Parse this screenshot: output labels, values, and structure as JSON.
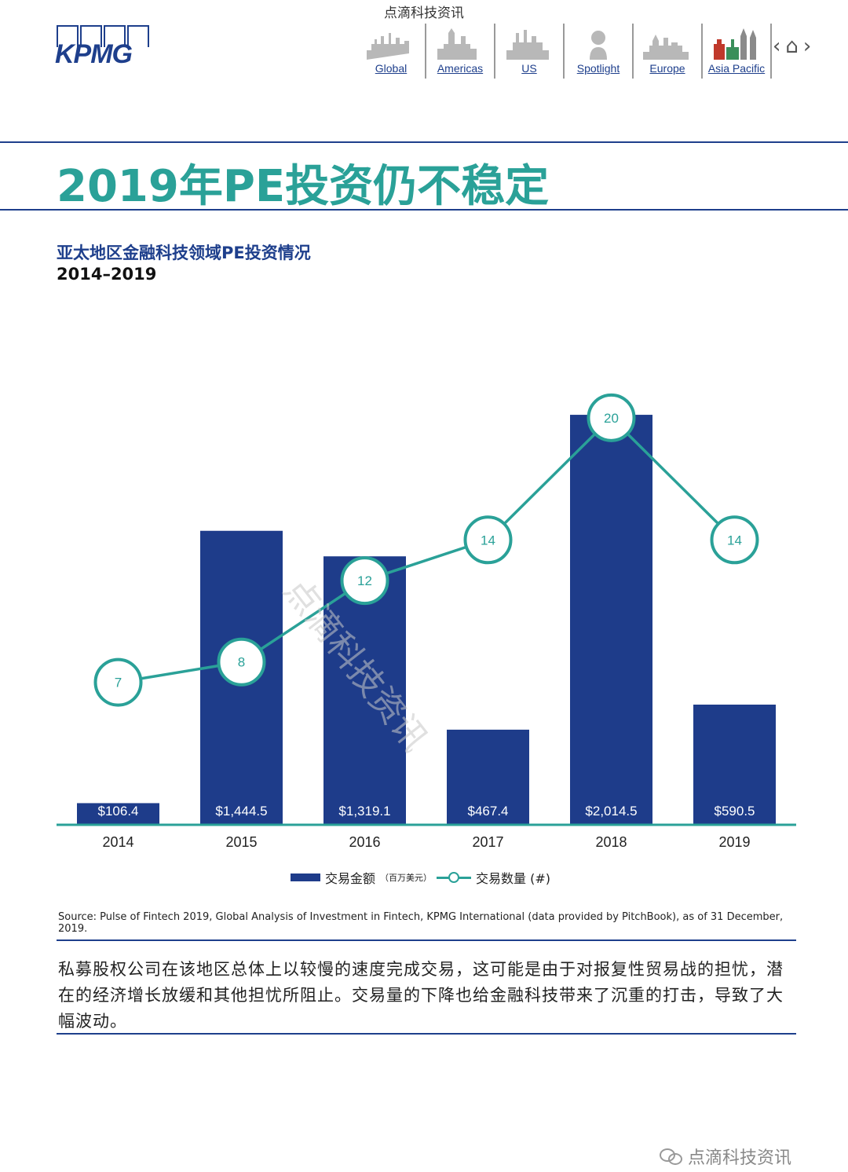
{
  "watermark_top": "点滴科技资讯",
  "brand": {
    "logo_text": "KPMG"
  },
  "nav": {
    "items": [
      {
        "label": "Global",
        "icon": "global-skyline-icon"
      },
      {
        "label": "Americas",
        "icon": "americas-skyline-icon"
      },
      {
        "label": "US",
        "icon": "us-skyline-icon"
      },
      {
        "label": "Spotlight",
        "icon": "spotlight-bust-icon"
      },
      {
        "label": "Europe",
        "icon": "europe-skyline-icon"
      },
      {
        "label": "Asia Pacific",
        "icon": "asia-pacific-skyline-icon"
      }
    ],
    "prev_symbol": "‹",
    "home_symbol": "⌂",
    "next_symbol": "›"
  },
  "page_title": "2019年PE投资仍不稳定",
  "chart_title": "亚太地区金融科技领域PE投资情况",
  "chart_subtitle": "2014–2019",
  "chart_data": {
    "type": "bar+line",
    "title": "亚太地区金融科技领域PE投资情况",
    "subtitle": "2014–2019",
    "categories": [
      "2014",
      "2015",
      "2016",
      "2017",
      "2018",
      "2019"
    ],
    "series": [
      {
        "name": "交易金额（百万美元）",
        "type": "bar",
        "color": "#1e3c8a",
        "values": [
          106.4,
          1444.5,
          1319.1,
          467.4,
          2014.5,
          590.5
        ],
        "labels": [
          "$106.4",
          "$1,444.5",
          "$1,319.1",
          "$467.4",
          "$2,014.5",
          "$590.5"
        ]
      },
      {
        "name": "交易数量 (#)",
        "type": "line",
        "color": "#2aa198",
        "values": [
          7,
          8,
          12,
          14,
          20,
          14
        ]
      }
    ],
    "ylim_bar": [
      0,
      2200
    ],
    "ylim_line": [
      0,
      22
    ],
    "grid": false,
    "legend_position": "bottom-center"
  },
  "legend": {
    "bar_label": "交易金额",
    "bar_unit": "（百万美元）",
    "line_label": "交易数量 (#)"
  },
  "source": "Source: Pulse of Fintech 2019, Global Analysis of Investment in Fintech, KPMG International (data provided by PitchBook), as of 31 December, 2019.",
  "body_text": "私募股权公司在该地区总体上以较慢的速度完成交易，这可能是由于对报复性贸易战的担忧，潜在的经济增长放缓和其他担忧所阻止。交易量的下降也给金融科技带来了沉重的打击，导致了大幅波动。",
  "diagonal_watermark": "点滴科技资讯",
  "footer_watermark": "点滴科技资讯"
}
